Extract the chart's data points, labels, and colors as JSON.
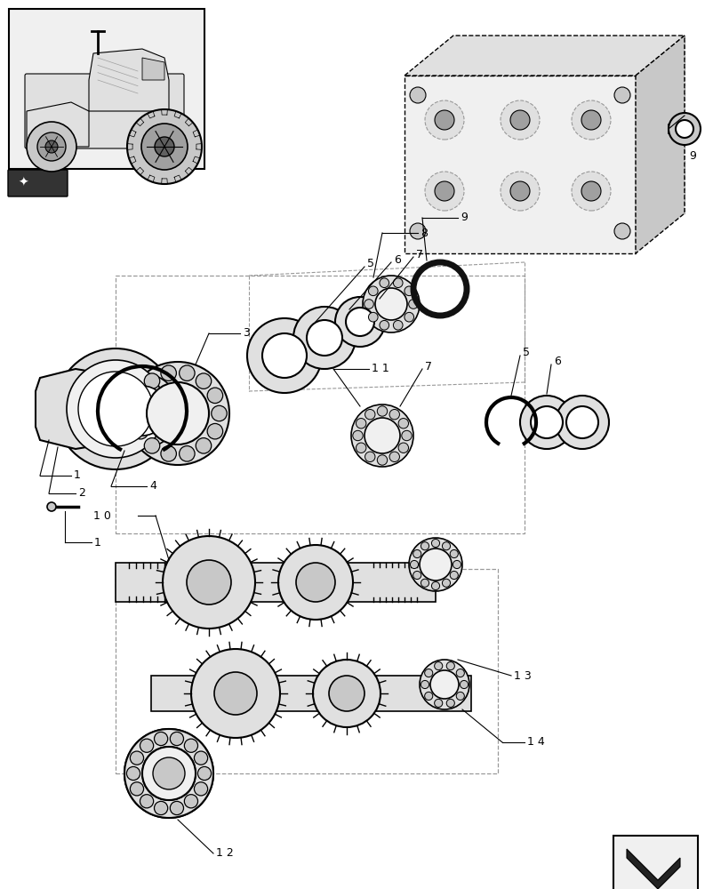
{
  "bg_color": "#ffffff",
  "lc": "#000000",
  "gray1": "#f0f0f0",
  "gray2": "#e0e0e0",
  "gray3": "#c8c8c8",
  "gray4": "#a0a0a0",
  "gray5": "#606060",
  "dashed_color": "#999999",
  "figsize": [
    8.12,
    10.0
  ],
  "dpi": 100
}
